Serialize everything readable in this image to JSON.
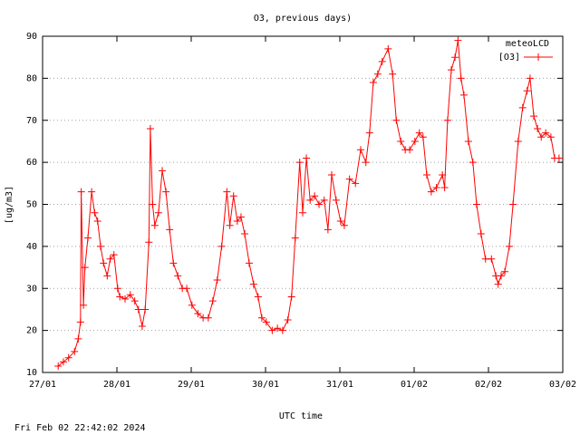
{
  "chart_data": {
    "type": "line",
    "title": "O3, previous days)",
    "y_label": "[ug/m3]",
    "x_label": "UTC time",
    "legend_title": "meteoLCD",
    "timestamp": "Fri Feb 02 22:42:02 2024",
    "grid": true,
    "legend_position": "upper right",
    "xlim": [
      0,
      7
    ],
    "xticks": [
      {
        "value": 0,
        "label": "27/01"
      },
      {
        "value": 1,
        "label": "28/01"
      },
      {
        "value": 2,
        "label": "29/01"
      },
      {
        "value": 3,
        "label": "30/01"
      },
      {
        "value": 4,
        "label": "31/01"
      },
      {
        "value": 5,
        "label": "01/02"
      },
      {
        "value": 6,
        "label": "02/02"
      },
      {
        "value": 7,
        "label": "03/02"
      }
    ],
    "ylim": [
      10,
      90
    ],
    "yticks": [
      10,
      20,
      30,
      40,
      50,
      60,
      70,
      80,
      90
    ],
    "x": [
      0.21,
      0.28,
      0.35,
      0.43,
      0.48,
      0.51,
      0.52,
      0.55,
      0.57,
      0.61,
      0.66,
      0.7,
      0.74,
      0.78,
      0.82,
      0.87,
      0.91,
      0.96,
      1.01,
      1.04,
      1.11,
      1.18,
      1.24,
      1.29,
      1.34,
      1.38,
      1.43,
      1.45,
      1.48,
      1.51,
      1.56,
      1.61,
      1.66,
      1.71,
      1.76,
      1.82,
      1.88,
      1.94,
      2.01,
      2.09,
      2.16,
      2.23,
      2.29,
      2.35,
      2.41,
      2.48,
      2.52,
      2.57,
      2.62,
      2.67,
      2.72,
      2.78,
      2.84,
      2.9,
      2.95,
      3.01,
      3.09,
      3.16,
      3.23,
      3.3,
      3.35,
      3.4,
      3.46,
      3.5,
      3.55,
      3.6,
      3.66,
      3.72,
      3.79,
      3.84,
      3.89,
      3.95,
      4.01,
      4.06,
      4.13,
      4.21,
      4.28,
      4.35,
      4.4,
      4.45,
      4.51,
      4.57,
      4.65,
      4.71,
      4.76,
      4.82,
      4.88,
      4.94,
      5.01,
      5.07,
      5.12,
      5.17,
      5.23,
      5.3,
      5.38,
      5.41,
      5.45,
      5.5,
      5.55,
      5.59,
      5.63,
      5.67,
      5.73,
      5.79,
      5.84,
      5.9,
      5.96,
      6.04,
      6.1,
      6.13,
      6.17,
      6.22,
      6.28,
      6.33,
      6.4,
      6.46,
      6.52,
      6.56,
      6.61,
      6.66,
      6.71,
      6.77,
      6.84,
      6.89,
      6.95
    ],
    "series": [
      {
        "name": "[O3]",
        "color": "#ff0000",
        "values": [
          11.5,
          12.5,
          13.5,
          15,
          18,
          22,
          53,
          26,
          35,
          42,
          53,
          48,
          46,
          40,
          36,
          33,
          37,
          38,
          30,
          28,
          27.5,
          28.5,
          27,
          25,
          21,
          25,
          41,
          68,
          50,
          45,
          48,
          58,
          53,
          44,
          36,
          33,
          30,
          30,
          26,
          24,
          23,
          23,
          27,
          32,
          40,
          53,
          45,
          52,
          46,
          47,
          43,
          36,
          31,
          28,
          23,
          22,
          20,
          20.5,
          20,
          22.5,
          28,
          42,
          60,
          48,
          61,
          51,
          52,
          50,
          51,
          44,
          57,
          51,
          46,
          45,
          56,
          55,
          63,
          60,
          67,
          79,
          81,
          84,
          87,
          81,
          70,
          65,
          63,
          63,
          65,
          67,
          66,
          57,
          53,
          54,
          57,
          54,
          70,
          82,
          85,
          89,
          80,
          76,
          65,
          60,
          50,
          43,
          37,
          37,
          33,
          31,
          33,
          34,
          40,
          50,
          65,
          73,
          77,
          80,
          71,
          68,
          66,
          67,
          66,
          61,
          61
        ]
      }
    ]
  }
}
